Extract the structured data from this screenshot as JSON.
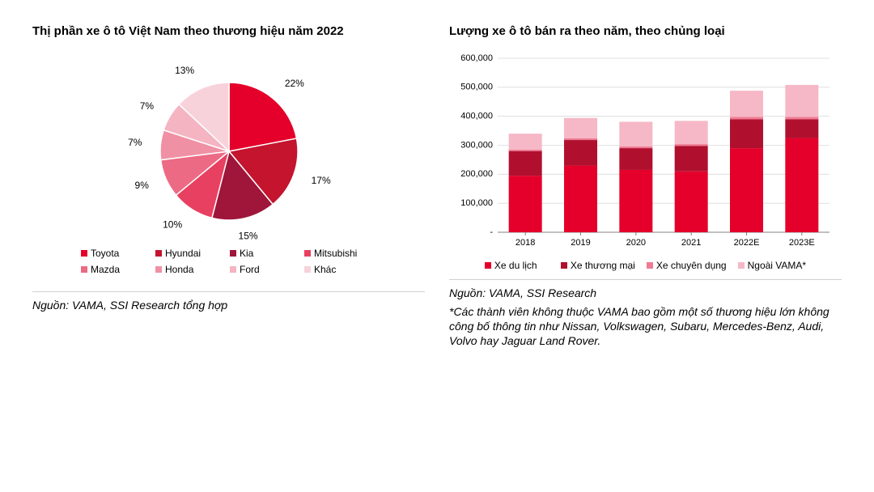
{
  "pie": {
    "type": "pie",
    "title": "Thị phần xe ô tô Việt Nam theo thương hiệu năm 2022",
    "title_fontsize": 15,
    "background_color": "#ffffff",
    "label_fontsize": 12,
    "label_color": "#000000",
    "start_angle_deg": -90,
    "direction": "clockwise",
    "slices": [
      {
        "label": "Toyota",
        "value": 22,
        "pct_label": "22%",
        "color": "#e4002b"
      },
      {
        "label": "Hyundai",
        "value": 17,
        "pct_label": "17%",
        "color": "#c4142e"
      },
      {
        "label": "Kia",
        "value": 15,
        "pct_label": "15%",
        "color": "#a0153a"
      },
      {
        "label": "Mitsubishi",
        "value": 10,
        "pct_label": "10%",
        "color": "#e84060"
      },
      {
        "label": "Mazda",
        "value": 9,
        "pct_label": "9%",
        "color": "#ec6a84"
      },
      {
        "label": "Honda",
        "value": 7,
        "pct_label": "7%",
        "color": "#f090a4"
      },
      {
        "label": "Ford",
        "value": 7,
        "pct_label": "7%",
        "color": "#f4b4c2"
      },
      {
        "label": "Khác",
        "value": 13,
        "pct_label": "13%",
        "color": "#f8d2db"
      }
    ],
    "source": "Nguồn: VAMA, SSI Research tổng hợp"
  },
  "bar": {
    "type": "stacked-bar",
    "title": "Lượng xe ô tô bán ra theo năm, theo chủng loại",
    "title_fontsize": 15,
    "background_color": "#ffffff",
    "axis_color": "#808080",
    "grid_color": "#d9d9d9",
    "label_fontsize": 11,
    "tick_fontsize": 11,
    "ylim": [
      0,
      600000
    ],
    "ytick_step": 100000,
    "ytick_labels": [
      "-",
      "100,000",
      "200,000",
      "300,000",
      "400,000",
      "500,000",
      "600,000"
    ],
    "bar_width": 0.6,
    "categories": [
      "2018",
      "2019",
      "2020",
      "2021",
      "2022E",
      "2023E"
    ],
    "series": [
      {
        "name": "Xe du lịch",
        "color": "#e4002b",
        "values": [
          195000,
          230000,
          215000,
          210000,
          290000,
          325000
        ]
      },
      {
        "name": "Xe thương mại",
        "color": "#b0102e",
        "values": [
          85000,
          88000,
          75000,
          88000,
          100000,
          65000
        ]
      },
      {
        "name": "Xe chuyên dụng",
        "color": "#ef7b94",
        "values": [
          5000,
          6000,
          6000,
          6000,
          8000,
          8000
        ]
      },
      {
        "name": "Ngoài VAMA*",
        "color": "#f6b8c6",
        "values": [
          55000,
          70000,
          85000,
          80000,
          90000,
          110000
        ]
      }
    ],
    "source": "Nguồn: VAMA, SSI Research",
    "footnote": "*Các thành viên không thuộc VAMA bao gồm một số thương hiệu lớn không công bố thông tin như Nissan, Volkswagen, Subaru, Mercedes-Benz, Audi, Volvo hay Jaguar Land Rover."
  }
}
